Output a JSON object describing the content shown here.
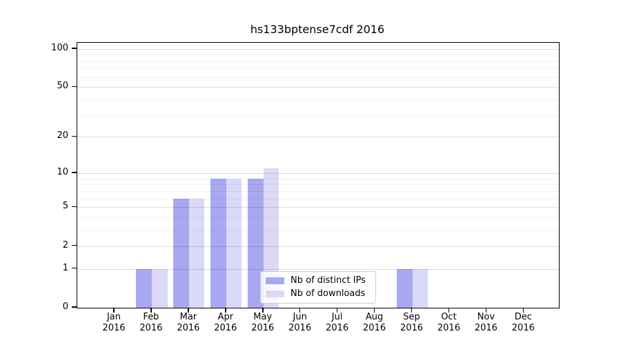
{
  "chart_data": {
    "type": "bar",
    "title": "hs133bptense7cdf 2016",
    "categories": [
      "Jan",
      "Feb",
      "Mar",
      "Apr",
      "May",
      "Jun",
      "Jul",
      "Aug",
      "Sep",
      "Oct",
      "Nov",
      "Dec"
    ],
    "x_tick_second_line": "2016",
    "series": [
      {
        "name": "Nb of distinct IPs",
        "color": "#a8a8f0",
        "values": [
          0,
          1,
          6,
          9,
          9,
          0,
          0,
          0,
          1,
          0,
          0,
          0
        ]
      },
      {
        "name": "Nb of downloads",
        "color": "#dadaf8",
        "values": [
          0,
          1,
          6,
          9,
          11,
          0,
          0,
          0,
          1,
          0,
          0,
          0
        ]
      }
    ],
    "yscale": "log1p",
    "ylim": [
      0,
      111
    ],
    "y_major_ticks": [
      0,
      1,
      2,
      5,
      10,
      20,
      50,
      100
    ],
    "y_minor_gridlines": [
      3,
      4,
      6,
      7,
      8,
      9,
      30,
      40,
      60,
      70,
      80,
      90
    ],
    "grid": "on",
    "legend_position": "lower center (inside plot)"
  }
}
